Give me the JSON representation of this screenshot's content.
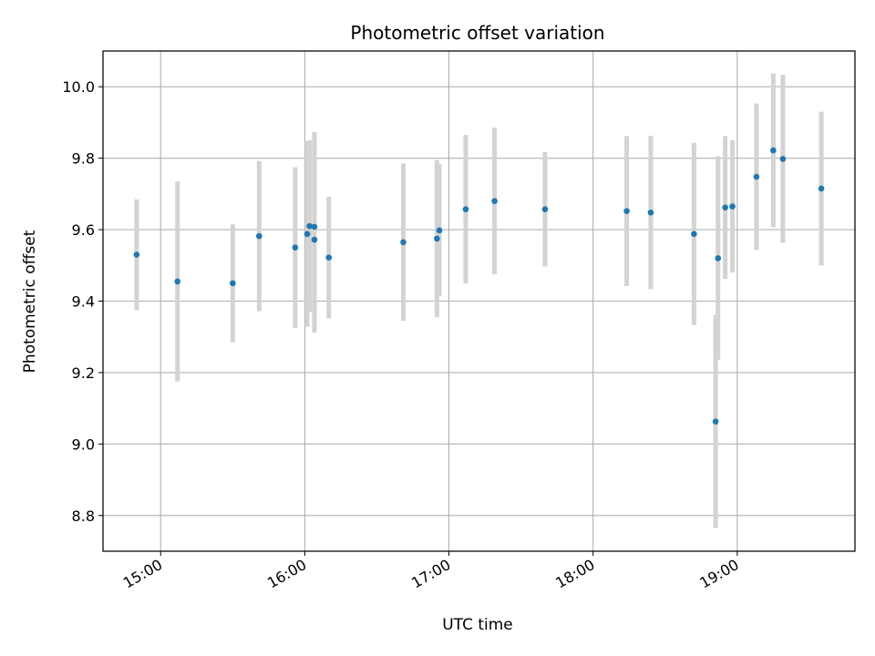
{
  "chart_data": {
    "type": "scatter",
    "title": "Photometric offset variation",
    "xlabel": "UTC time",
    "ylabel": "Photometric offset",
    "xlim": [
      "14:36",
      "19:49"
    ],
    "ylim": [
      8.7,
      10.1
    ],
    "x_ticks": [
      "15:00",
      "16:00",
      "17:00",
      "18:00",
      "19:00"
    ],
    "y_ticks": [
      8.8,
      9.0,
      9.2,
      9.4,
      9.6,
      9.8,
      10.0
    ],
    "grid": true,
    "marker_color": "#1f77b4",
    "errorbar_color": "#d3d3d3",
    "points": [
      {
        "x": "14:50",
        "y": 9.53,
        "err": 0.155
      },
      {
        "x": "15:07",
        "y": 9.455,
        "err": 0.28
      },
      {
        "x": "15:30",
        "y": 9.45,
        "err": 0.165
      },
      {
        "x": "15:41",
        "y": 9.582,
        "err": 0.21
      },
      {
        "x": "15:56",
        "y": 9.55,
        "err": 0.225
      },
      {
        "x": "16:01",
        "y": 9.588,
        "err": 0.26
      },
      {
        "x": "16:02",
        "y": 9.61,
        "err": 0.24
      },
      {
        "x": "16:04",
        "y": 9.608,
        "err": 0.265
      },
      {
        "x": "16:04",
        "y": 9.572,
        "err": 0.26
      },
      {
        "x": "16:10",
        "y": 9.522,
        "err": 0.17
      },
      {
        "x": "16:41",
        "y": 9.565,
        "err": 0.22
      },
      {
        "x": "16:55",
        "y": 9.575,
        "err": 0.22
      },
      {
        "x": "16:56",
        "y": 9.598,
        "err": 0.185
      },
      {
        "x": "17:07",
        "y": 9.657,
        "err": 0.208
      },
      {
        "x": "17:19",
        "y": 9.68,
        "err": 0.205
      },
      {
        "x": "17:40",
        "y": 9.657,
        "err": 0.16
      },
      {
        "x": "18:14",
        "y": 9.652,
        "err": 0.21
      },
      {
        "x": "18:24",
        "y": 9.648,
        "err": 0.215
      },
      {
        "x": "18:42",
        "y": 9.588,
        "err": 0.255
      },
      {
        "x": "18:51",
        "y": 9.063,
        "err": 0.298
      },
      {
        "x": "18:52",
        "y": 9.52,
        "err": 0.285
      },
      {
        "x": "18:55",
        "y": 9.662,
        "err": 0.2
      },
      {
        "x": "18:58",
        "y": 9.665,
        "err": 0.185
      },
      {
        "x": "19:08",
        "y": 9.748,
        "err": 0.205
      },
      {
        "x": "19:15",
        "y": 9.822,
        "err": 0.215
      },
      {
        "x": "19:19",
        "y": 9.798,
        "err": 0.235
      },
      {
        "x": "19:35",
        "y": 9.715,
        "err": 0.215
      }
    ]
  }
}
